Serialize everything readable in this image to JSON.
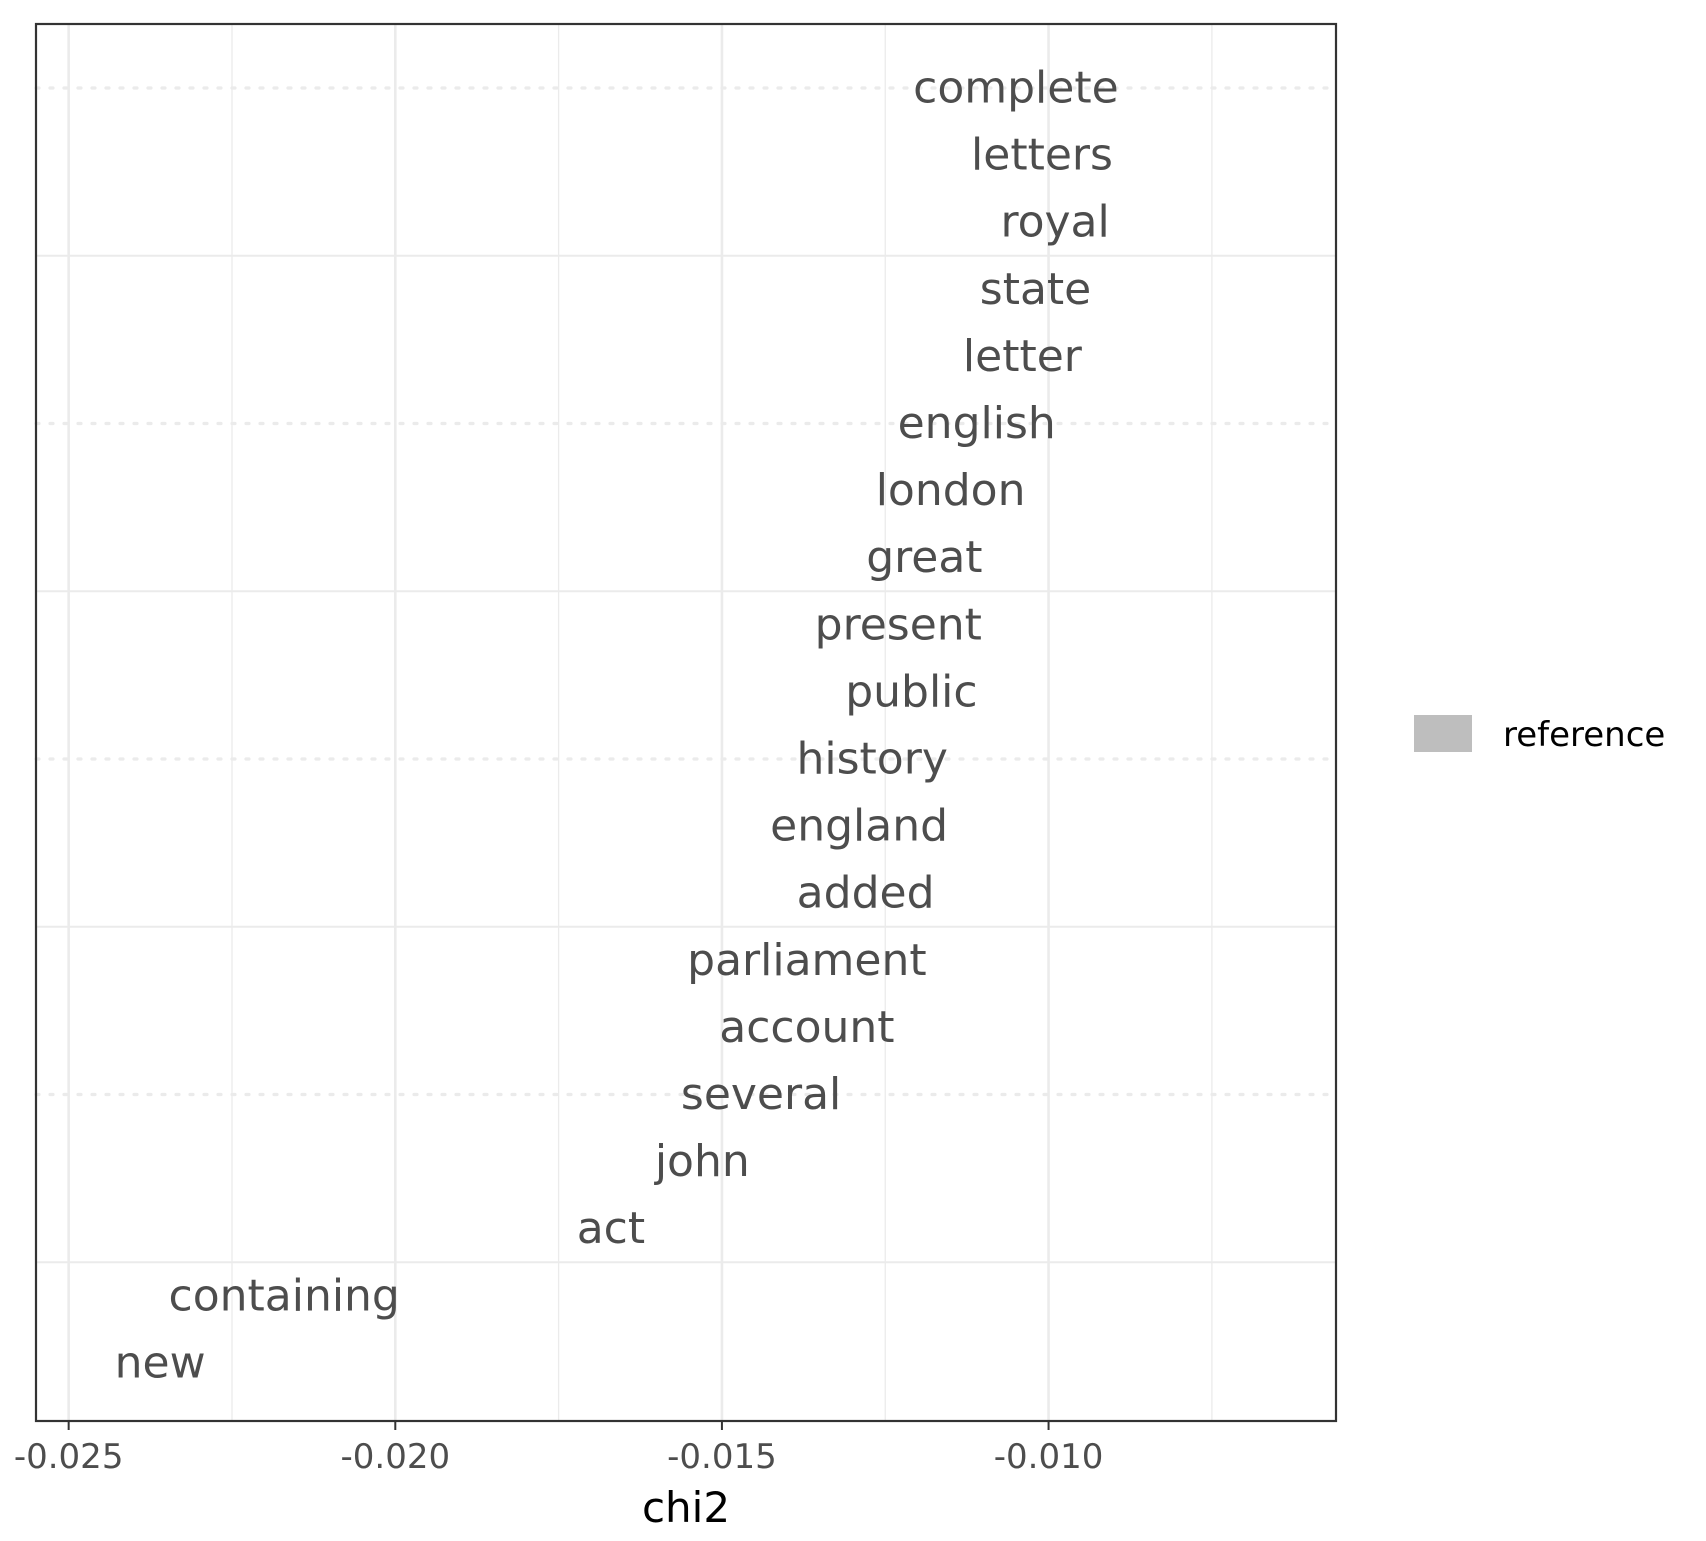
{
  "chart_data": {
    "type": "scatter",
    "xlabel": "chi2",
    "ylabel": "",
    "xlim": [
      -0.0255,
      -0.0056
    ],
    "x_ticks": [
      -0.025,
      -0.02,
      -0.015,
      -0.01
    ],
    "x_tick_labels": [
      "-0.025",
      "-0.020",
      "-0.015",
      "-0.010"
    ],
    "grid": true,
    "legend": {
      "position": "right",
      "entries": [
        {
          "label": "reference",
          "color": "#bebebe"
        }
      ]
    },
    "colors": {
      "label_text": "#4d4d4d",
      "grid": "#ebebeb",
      "panel_border": "#333333"
    },
    "points": [
      {
        "label": "complete",
        "x": -0.0105
      },
      {
        "label": "letters",
        "x": -0.0101
      },
      {
        "label": "royal",
        "x": -0.0099
      },
      {
        "label": "state",
        "x": -0.0102
      },
      {
        "label": "letter",
        "x": -0.0104
      },
      {
        "label": "english",
        "x": -0.0111
      },
      {
        "label": "london",
        "x": -0.0115
      },
      {
        "label": "great",
        "x": -0.0119
      },
      {
        "label": "present",
        "x": -0.0123
      },
      {
        "label": "public",
        "x": -0.0121
      },
      {
        "label": "history",
        "x": -0.0127
      },
      {
        "label": "england",
        "x": -0.0129
      },
      {
        "label": "added",
        "x": -0.0128
      },
      {
        "label": "parliament",
        "x": -0.0137
      },
      {
        "label": "account",
        "x": -0.0137
      },
      {
        "label": "several",
        "x": -0.0144
      },
      {
        "label": "john",
        "x": -0.0153
      },
      {
        "label": "act",
        "x": -0.0167
      },
      {
        "label": "containing",
        "x": -0.0217
      },
      {
        "label": "new",
        "x": -0.0236
      }
    ]
  }
}
